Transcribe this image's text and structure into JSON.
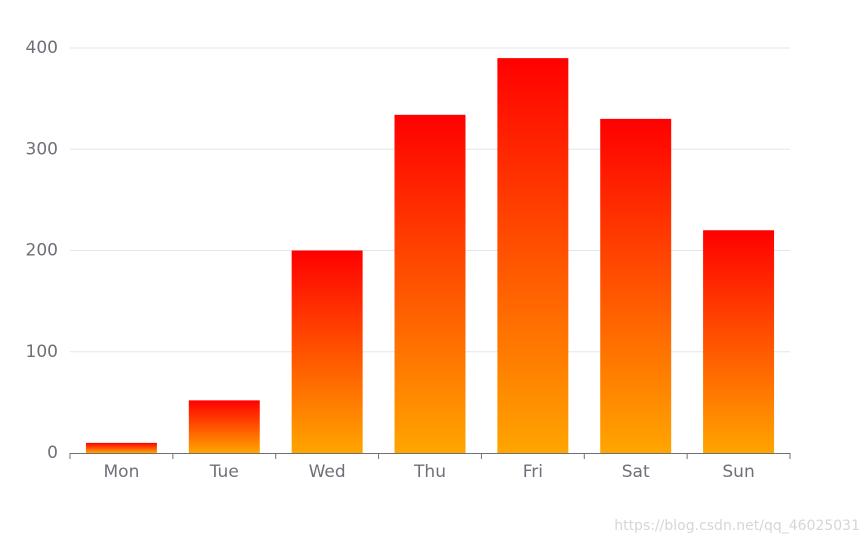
{
  "chart_data": {
    "type": "bar",
    "categories": [
      "Mon",
      "Tue",
      "Wed",
      "Thu",
      "Fri",
      "Sat",
      "Sun"
    ],
    "values": [
      10,
      52,
      200,
      334,
      390,
      330,
      220
    ],
    "colors": [
      "#ff0000",
      "#ffa500"
    ],
    "ylim": [
      0,
      400
    ],
    "yticks": [
      0,
      100,
      200,
      300,
      400
    ],
    "grid": true
  },
  "watermark": "https://blog.csdn.net/qq_46025031"
}
